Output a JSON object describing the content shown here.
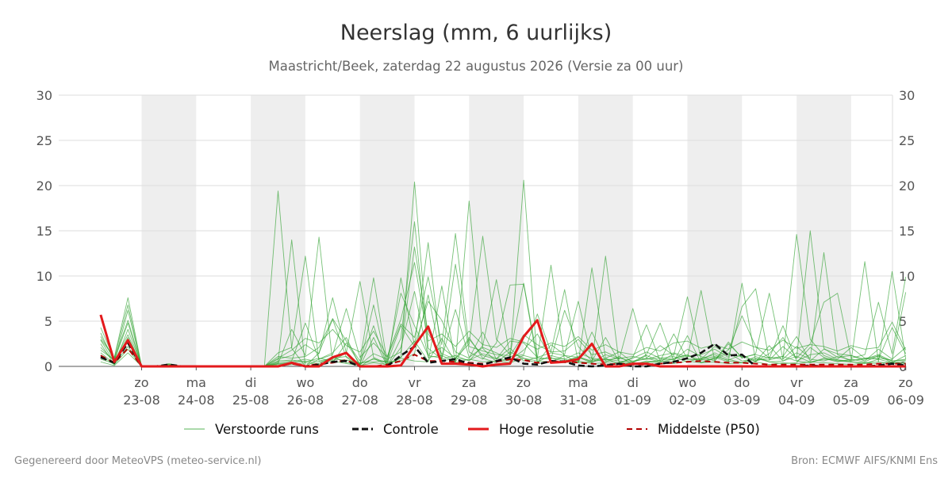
{
  "chart_data": {
    "type": "line",
    "title": "Neerslag (mm, 6 uurlijks)",
    "subtitle": "Maastricht/Beek, zaterdag 22 augustus 2026 (Versie za 00 uur)",
    "ylim": [
      0,
      30
    ],
    "y_ticks": [
      0,
      5,
      10,
      15,
      20,
      25,
      30
    ],
    "xlim_steps": [
      0,
      59
    ],
    "day_ticks": [
      {
        "step": 5,
        "day": "zo",
        "date": "23-08"
      },
      {
        "step": 9,
        "day": "ma",
        "date": "24-08"
      },
      {
        "step": 13,
        "day": "di",
        "date": "25-08"
      },
      {
        "step": 17,
        "day": "wo",
        "date": "26-08"
      },
      {
        "step": 21,
        "day": "do",
        "date": "27-08"
      },
      {
        "step": 25,
        "day": "vr",
        "date": "28-08"
      },
      {
        "step": 29,
        "day": "za",
        "date": "29-08"
      },
      {
        "step": 33,
        "day": "zo",
        "date": "30-08"
      },
      {
        "step": 37,
        "day": "ma",
        "date": "31-08"
      },
      {
        "step": 41,
        "day": "di",
        "date": "01-09"
      },
      {
        "step": 45,
        "day": "wo",
        "date": "02-09"
      },
      {
        "step": 49,
        "day": "do",
        "date": "03-09"
      },
      {
        "step": 53,
        "day": "vr",
        "date": "04-09"
      },
      {
        "step": 57,
        "day": "za",
        "date": "05-09"
      },
      {
        "step": 61,
        "day": "zo",
        "date": "06-09"
      }
    ],
    "shaded_days": [
      5,
      13,
      21,
      29,
      37,
      45,
      53
    ],
    "grid": true,
    "legend_position": "bottom",
    "x_start_step": 2,
    "series": [
      {
        "name": "Controle",
        "color": "#111111",
        "style": "dashed",
        "values": [
          1.0,
          0.4,
          2.6,
          0,
          0,
          0.2,
          0,
          0,
          0,
          0,
          0,
          0,
          0,
          0,
          0.4,
          0,
          0.2,
          0.5,
          0.6,
          0,
          0,
          0,
          1.2,
          2.2,
          0.4,
          0.6,
          0.8,
          0.3,
          0.2,
          0.6,
          1.0,
          0.3,
          0.2,
          0.6,
          0.5,
          0.1,
          0,
          0.1,
          0.3,
          0,
          0,
          0.3,
          0.5,
          0.9,
          1.5,
          2.5,
          1.2,
          1.3,
          0,
          0,
          0,
          0,
          0.1,
          0,
          0,
          0,
          0,
          0.1,
          0.3,
          0.1
        ]
      },
      {
        "name": "Hoge resolutie",
        "color": "#e31a1c",
        "style": "solid",
        "values": [
          5.7,
          0.5,
          2.9,
          0,
          0,
          0,
          0,
          0,
          0,
          0,
          0,
          0,
          0,
          0,
          0.4,
          0,
          0,
          1.0,
          1.5,
          0,
          0,
          0,
          0.1,
          2.3,
          4.4,
          0.3,
          0.3,
          0.2,
          0,
          0.2,
          0.3,
          3.3,
          5.1,
          0.4,
          0.5,
          0.8,
          2.5,
          0,
          0,
          0.3,
          0.3,
          0,
          0,
          0,
          0,
          0,
          0,
          0,
          0,
          0,
          0,
          0,
          0,
          0,
          0,
          0,
          0,
          0,
          0,
          0
        ]
      },
      {
        "name": "Middelste (P50)",
        "color": "#b30000",
        "style": "dashed",
        "values": [
          1.2,
          0.4,
          2.0,
          0,
          0,
          0.1,
          0,
          0,
          0,
          0,
          0,
          0,
          0,
          0,
          0.3,
          0,
          0.3,
          0.4,
          0.7,
          0,
          0,
          0.2,
          0.6,
          1.3,
          0.6,
          0.6,
          0.5,
          0.4,
          0.3,
          0.5,
          0.8,
          0.7,
          0.4,
          0.5,
          0.6,
          0.4,
          0.3,
          0.2,
          0.3,
          0.2,
          0.2,
          0.3,
          0.4,
          0.5,
          0.6,
          0.5,
          0.4,
          0.4,
          0.3,
          0.2,
          0.2,
          0.2,
          0.2,
          0.2,
          0.2,
          0.2,
          0.2,
          0.3,
          0.3,
          0.3
        ]
      }
    ],
    "ensemble": {
      "name": "Verstoorde runs",
      "color": "#2ca02c",
      "members": [
        [
          3,
          1,
          7.6,
          0,
          0,
          0.3,
          0,
          0,
          0,
          0,
          0,
          0,
          0,
          19.4,
          2,
          0,
          1.5,
          5.2,
          1,
          0,
          3.2,
          0,
          2.1,
          8.3,
          1,
          1.2,
          0.5,
          3,
          1.2,
          0.8,
          2,
          0.6,
          1,
          1.5,
          1.2,
          1,
          0.6,
          3.2,
          0.5,
          0.2,
          0.6,
          0.5,
          1.4,
          0.8,
          0.7,
          1.5,
          0.8,
          0.4,
          1.1,
          0.5,
          0.3,
          0.4,
          2.1,
          1,
          0.6,
          0.5,
          0.4,
          0.5,
          0.3,
          0.4
        ],
        [
          4.3,
          0.8,
          5.1,
          0,
          0,
          0.2,
          0,
          0,
          0,
          0,
          0,
          0,
          0,
          0.5,
          14.0,
          0,
          0.8,
          1.5,
          3.2,
          0,
          0.9,
          0.1,
          1,
          2.8,
          0.6,
          3.1,
          0.4,
          18.3,
          2,
          0.5,
          0.8,
          20.6,
          0.5,
          1.2,
          0.8,
          0.4,
          0.5,
          12.2,
          0.3,
          1,
          4.6,
          0.6,
          0.5,
          3.4,
          0.4,
          1,
          0.5,
          9.2,
          0.6,
          1,
          0.8,
          14.6,
          3,
          1.2,
          0.7,
          0.5,
          0.3,
          0.8,
          0.4,
          1.2
        ],
        [
          2.1,
          0.6,
          3.5,
          0,
          0,
          0.1,
          0,
          0,
          0,
          0,
          0,
          0,
          0,
          1.5,
          2.1,
          12.2,
          0.6,
          0.9,
          1.1,
          0.2,
          6.8,
          0,
          3.1,
          16.0,
          1.3,
          2.1,
          0.9,
          2.5,
          14.4,
          3,
          1.3,
          9.2,
          0.9,
          11.2,
          0.6,
          1,
          0.4,
          1.3,
          0.8,
          6.4,
          0.9,
          2.3,
          1.2,
          7.7,
          0.8,
          2.2,
          1.3,
          1.1,
          0.6,
          1.4,
          3.2,
          0.9,
          15.0,
          2,
          1,
          1.2,
          0.8,
          1.3,
          0.6,
          0.7
        ],
        [
          1.5,
          0.3,
          2.8,
          0,
          0,
          0.2,
          0,
          0,
          0,
          0,
          0,
          0,
          0,
          0.3,
          4.1,
          1.2,
          14.3,
          0.4,
          2.6,
          0.3,
          4.5,
          0,
          9.8,
          2.3,
          13.7,
          0.8,
          1.2,
          0.6,
          2.3,
          9.6,
          1.1,
          1.3,
          5.8,
          1.6,
          8.5,
          0.4,
          10.9,
          0.9,
          0.2,
          0.5,
          1.3,
          4.8,
          0.6,
          0.9,
          8.4,
          0.6,
          2.7,
          0.9,
          1.4,
          8.1,
          0.8,
          2.2,
          0.9,
          12.6,
          1.3,
          0.6,
          11.6,
          0.5,
          10.5,
          0.8
        ],
        [
          3.7,
          0.5,
          6.2,
          0,
          0,
          0.1,
          0,
          0,
          0,
          0,
          0,
          0,
          0,
          0.8,
          1.2,
          2.4,
          1.4,
          7.6,
          1.5,
          9.4,
          1,
          0.3,
          1,
          20.4,
          2,
          0.8,
          11.3,
          1.6,
          0.8,
          2.6,
          9.0,
          9.1,
          0.4,
          2.4,
          1.3,
          7.2,
          0.8,
          0.5,
          1.1,
          0.2,
          0.4,
          0.7,
          0.9,
          1.3,
          0.4,
          0.9,
          1.8,
          5.6,
          2.2,
          0.9,
          1.1,
          3.3,
          0.6,
          1.9,
          1.4,
          1.2,
          0.6,
          1.9,
          0.8,
          2.1
        ],
        [
          2.5,
          0.2,
          4.1,
          0,
          0,
          0,
          0,
          0,
          0,
          0,
          0,
          0,
          0,
          0.4,
          0.6,
          4.8,
          0.8,
          1.3,
          6.4,
          1,
          2.6,
          1,
          4.7,
          3.2,
          9.9,
          2.4,
          14.7,
          2.2,
          1.7,
          1.3,
          1.2,
          3.5,
          2.4,
          1.6,
          1.7,
          3,
          1.3,
          1.6,
          0.9,
          0.6,
          0.8,
          1.2,
          1.5,
          1.1,
          1.3,
          1.9,
          1,
          6.6,
          8.6,
          0.7,
          2.2,
          0.9,
          2.5,
          7.1,
          8.1,
          0.9,
          1.3,
          7.1,
          1.4,
          9.9
        ],
        [
          1.8,
          0.7,
          4.8,
          0,
          0,
          0.2,
          0,
          0,
          0,
          0,
          0,
          0,
          0,
          1.1,
          0.9,
          1.1,
          2.1,
          5.3,
          2.8,
          0.6,
          9.8,
          0.4,
          4.5,
          2.2,
          7.2,
          5.1,
          1.6,
          0.9,
          3.8,
          0.8,
          2.8,
          2.6,
          1,
          0.8,
          6.2,
          2.2,
          0.6,
          0.9,
          1.6,
          0.4,
          1.2,
          0.6,
          3.6,
          0.8,
          0.8,
          1.1,
          0.7,
          1.3,
          0.5,
          2.3,
          0.6,
          1.1,
          0.5,
          0.8,
          0.7,
          0.6,
          0.9,
          1.1,
          0.6,
          0.8
        ],
        [
          2.9,
          0.4,
          3.2,
          0,
          0,
          0.1,
          0,
          0,
          0,
          0,
          0,
          0,
          0,
          0.2,
          0.5,
          0.8,
          0.5,
          0.8,
          0.7,
          0.4,
          0.5,
          0.6,
          8.1,
          4.5,
          1.2,
          0.9,
          6.3,
          1,
          2.1,
          1.5,
          0.7,
          1.8,
          3.6,
          0.9,
          0.8,
          1.5,
          0.9,
          0.7,
          0.9,
          1.1,
          0.8,
          0.9,
          0.7,
          1.9,
          1.1,
          0.6,
          2.5,
          1,
          1.3,
          0.9,
          4.5,
          0.6,
          1.3,
          1.5,
          0.8,
          2.1,
          0.9,
          0.8,
          4.3,
          1.4
        ],
        [
          1.2,
          0.2,
          1.9,
          0,
          0,
          0,
          0,
          0,
          0,
          0,
          0,
          0,
          0,
          0.6,
          0.7,
          0.5,
          0.9,
          0.6,
          1.5,
          0.2,
          1.4,
          0.8,
          1.6,
          13.2,
          3.6,
          1.4,
          0.8,
          3.2,
          0.9,
          0.4,
          1.6,
          0.9,
          0.6,
          0.5,
          1.2,
          0.4,
          3.8,
          0.6,
          0.4,
          0.9,
          1.6,
          0.9,
          1.1,
          0.5,
          0.9,
          1.3,
          0.6,
          0.4,
          0.8,
          0.7,
          1.1,
          0.6,
          0.4,
          0.9,
          0.5,
          0.8,
          0.5,
          1.2,
          0.4,
          0.6
        ],
        [
          0.8,
          0.3,
          2.2,
          0,
          0,
          0,
          0,
          0,
          0,
          0,
          0,
          0,
          0,
          0.3,
          0.4,
          0.6,
          0.3,
          1.1,
          0.4,
          0.3,
          0.8,
          0.5,
          0.6,
          1.4,
          7.9,
          0.6,
          0.9,
          0.7,
          1.4,
          0.9,
          0.6,
          1.2,
          0.8,
          0.9,
          0.6,
          1.1,
          0.5,
          0.8,
          0.6,
          0.5,
          0.9,
          0.5,
          0.8,
          1.2,
          0.7,
          0.8,
          1.5,
          0.6,
          0.9,
          0.5,
          0.6,
          1.5,
          0.8,
          0.6,
          1.1,
          0.7,
          0.8,
          0.9,
          0.7,
          8.2
        ],
        [
          0.5,
          0.1,
          1.5,
          0,
          0,
          0,
          0,
          0,
          0,
          0,
          0,
          0,
          0,
          0.1,
          0.2,
          0.4,
          0.2,
          0.6,
          0.3,
          0.1,
          0.4,
          0.2,
          0.9,
          0.6,
          0.5,
          8.9,
          0.4,
          0.8,
          0.5,
          0.6,
          0.4,
          0.9,
          0.3,
          0.5,
          0.4,
          0.6,
          0.3,
          0.4,
          0.2,
          0.3,
          0.5,
          0.4,
          0.3,
          0.6,
          0.4,
          0.5,
          0.3,
          0.4,
          0.5,
          0.2,
          0.4,
          0.3,
          0.5,
          0.4,
          0.3,
          0.2,
          0.4,
          0.3,
          0.5,
          0.3
        ],
        [
          3.3,
          0.9,
          6.8,
          0,
          0,
          0.2,
          0,
          0,
          0,
          0,
          0,
          0,
          0,
          0.9,
          1.8,
          3.1,
          2.6,
          4.1,
          2.3,
          1.6,
          3.9,
          1.1,
          5.2,
          11.5,
          2.8,
          3.6,
          2.2,
          3.9,
          2.4,
          2.1,
          3.1,
          2.7,
          1.9,
          2.6,
          2.2,
          3.3,
          1.8,
          2.4,
          1.6,
          1.3,
          2.1,
          1.7,
          2.6,
          2.8,
          2,
          2.4,
          1.9,
          2.7,
          2.1,
          1.8,
          2.9,
          2,
          2.4,
          2.2,
          1.7,
          2.3,
          1.9,
          2.1,
          4.9,
          1.8
        ]
      ]
    }
  },
  "legend": {
    "ensemble": "Verstoorde runs",
    "control": "Controle",
    "highres": "Hoge resolutie",
    "median": "Middelste (P50)"
  },
  "footer": {
    "left": "Gegenereerd door MeteoVPS (meteo-service.nl)",
    "right": "Bron: ECMWF AIFS/KNMI Ens"
  }
}
